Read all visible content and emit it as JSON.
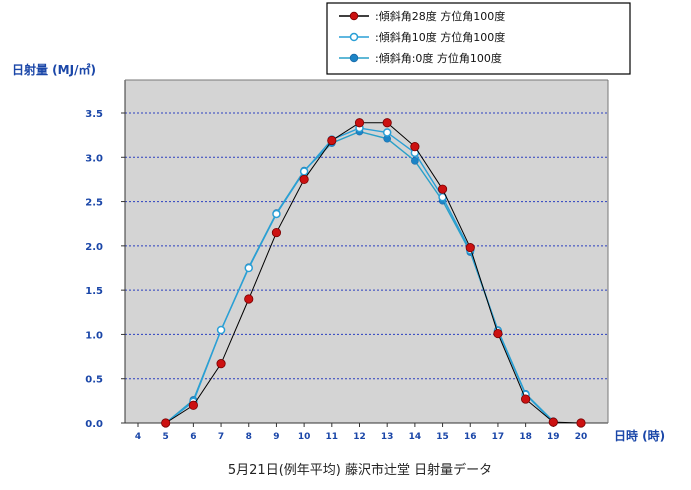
{
  "chart_data": {
    "type": "line",
    "title": "5月21日(例年平均) 藤沢市辻堂 日射量データ",
    "ylabel": "日射量 (MJ/㎡)",
    "xlabel": "日時 (時)",
    "x": [
      4,
      5,
      6,
      7,
      8,
      9,
      10,
      11,
      12,
      13,
      14,
      15,
      16,
      17,
      18,
      19,
      20
    ],
    "xlim": [
      4,
      20
    ],
    "ylim": [
      0,
      3.5
    ],
    "yticks": [
      "0.0",
      "0.5",
      "1.0",
      "1.5",
      "2.0",
      "2.5",
      "3.0",
      "3.5"
    ],
    "grid": true,
    "legend_position": "top-right",
    "series": [
      {
        "name": ":傾斜角28度 方位角100度",
        "color": "#cc1111",
        "line_color": "#000000",
        "marker": "diamond-dot",
        "x": [
          5,
          6,
          7,
          8,
          9,
          10,
          11,
          12,
          13,
          14,
          15,
          16,
          17,
          18,
          19,
          20
        ],
        "values": [
          0.0,
          0.2,
          0.67,
          1.4,
          2.15,
          2.75,
          3.19,
          3.39,
          3.39,
          3.12,
          2.64,
          1.98,
          1.01,
          0.27,
          0.01,
          0.0
        ]
      },
      {
        "name": ":傾斜角10度 方位角100度",
        "color": "#2a9fd6",
        "line_color": "#2a9fd6",
        "marker": "ring",
        "x": [
          5,
          6,
          7,
          8,
          9,
          10,
          11,
          12,
          13,
          14,
          15,
          16,
          17,
          18,
          19
        ],
        "values": [
          0.0,
          0.24,
          1.05,
          1.75,
          2.36,
          2.84,
          3.2,
          3.33,
          3.28,
          3.05,
          2.55,
          1.95,
          1.04,
          0.32,
          0.01
        ]
      },
      {
        "name": ":傾斜角:0度 方位角100度",
        "color": "#1c84c6",
        "line_color": "#2aa0c8",
        "marker": "dot",
        "x": [
          5,
          6,
          7,
          8,
          9,
          10,
          11,
          12,
          13,
          14,
          15,
          16,
          17,
          18,
          19
        ],
        "values": [
          0.0,
          0.26,
          1.05,
          1.76,
          2.37,
          2.85,
          3.16,
          3.29,
          3.21,
          2.96,
          2.51,
          1.93,
          1.05,
          0.33,
          0.02
        ]
      }
    ]
  }
}
